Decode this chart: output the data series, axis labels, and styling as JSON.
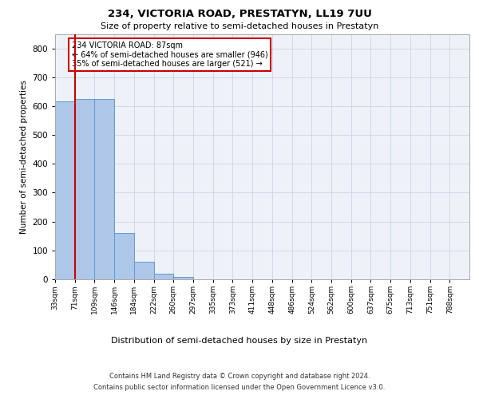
{
  "title1": "234, VICTORIA ROAD, PRESTATYN, LL19 7UU",
  "title2": "Size of property relative to semi-detached houses in Prestatyn",
  "xlabel": "Distribution of semi-detached houses by size in Prestatyn",
  "ylabel": "Number of semi-detached properties",
  "footer1": "Contains HM Land Registry data © Crown copyright and database right 2024.",
  "footer2": "Contains public sector information licensed under the Open Government Licence v3.0.",
  "bin_labels": [
    "33sqm",
    "71sqm",
    "109sqm",
    "146sqm",
    "184sqm",
    "222sqm",
    "260sqm",
    "297sqm",
    "335sqm",
    "373sqm",
    "411sqm",
    "448sqm",
    "486sqm",
    "524sqm",
    "562sqm",
    "600sqm",
    "637sqm",
    "675sqm",
    "713sqm",
    "751sqm",
    "788sqm"
  ],
  "bar_values": [
    617,
    625,
    625,
    160,
    60,
    18,
    8,
    0,
    0,
    0,
    0,
    0,
    0,
    0,
    0,
    0,
    0,
    0,
    0,
    0,
    0
  ],
  "bar_color": "#aec6e8",
  "bar_edgecolor": "#5b9bd5",
  "grid_color": "#d0d8e8",
  "background_color": "#eef2f8",
  "annotation_text": "234 VICTORIA ROAD: 87sqm\n← 64% of semi-detached houses are smaller (946)\n35% of semi-detached houses are larger (521) →",
  "annotation_box_color": "#ffffff",
  "annotation_box_edge": "#cc0000",
  "vline_x": 1.0,
  "vline_color": "#cc0000",
  "ylim": [
    0,
    850
  ],
  "yticks": [
    0,
    100,
    200,
    300,
    400,
    500,
    600,
    700,
    800
  ],
  "num_bins": 21,
  "title1_fontsize": 9.5,
  "title2_fontsize": 8,
  "ylabel_fontsize": 7.5,
  "xlabel_fontsize": 8,
  "tick_fontsize": 6.5,
  "ytick_fontsize": 7.5,
  "annotation_fontsize": 7,
  "footer_fontsize": 6
}
